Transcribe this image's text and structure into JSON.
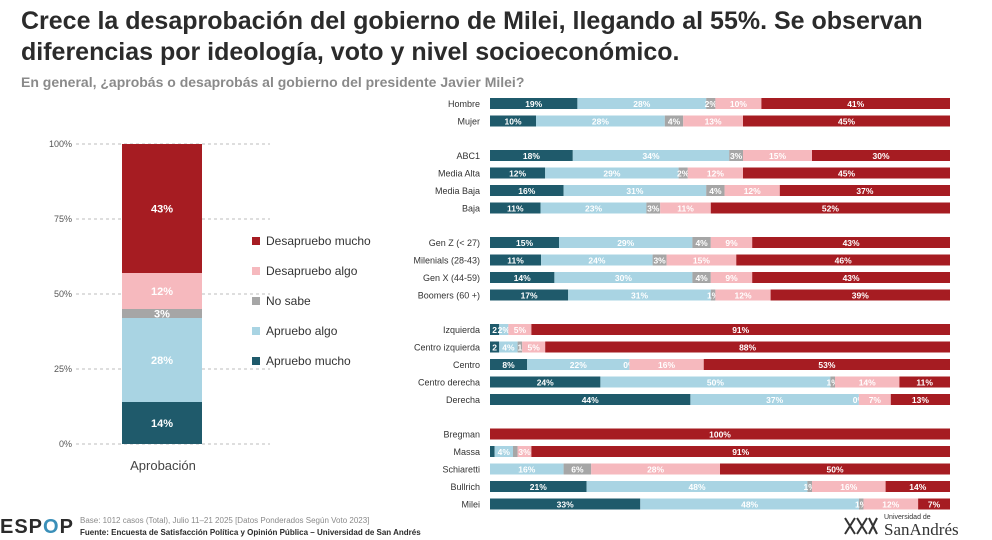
{
  "header": {
    "title": "Crece la desaprobación del gobierno de Milei, llegando al 55%. Se observan diferencias por ideología, voto y nivel socioeconómico.",
    "subtitle": "En general, ¿aprobás o desaprobás al gobierno del presidente Javier Milei?"
  },
  "colors": {
    "apruebo_mucho": "#1f5a6b",
    "apruebo_algo": "#a9d4e3",
    "no_sabe": "#a6a6a6",
    "desapruebo_algo": "#f6b9be",
    "desapruebo_mucho": "#a61c22"
  },
  "legend": [
    {
      "label": "Desapruebo mucho",
      "color": "#a61c22"
    },
    {
      "label": "Desapruebo algo",
      "color": "#f6b9be"
    },
    {
      "label": "No sabe",
      "color": "#a6a6a6"
    },
    {
      "label": "Apruebo algo",
      "color": "#a9d4e3"
    },
    {
      "label": "Apruebo mucho",
      "color": "#1f5a6b"
    }
  ],
  "chart_data": [
    {
      "type": "bar",
      "stacked": true,
      "category": "Aprobación",
      "ylim": [
        0,
        100
      ],
      "yticks": [
        "0%",
        "25%",
        "50%",
        "75%",
        "100%"
      ],
      "series": [
        {
          "name": "Apruebo mucho",
          "value": 14,
          "label": "14%"
        },
        {
          "name": "Apruebo algo",
          "value": 28,
          "label": "28%"
        },
        {
          "name": "No sabe",
          "value": 3,
          "label": "3%"
        },
        {
          "name": "Desapruebo algo",
          "value": 12,
          "label": "12%"
        },
        {
          "name": "Desapruebo mucho",
          "value": 43,
          "label": "43%"
        }
      ]
    },
    {
      "type": "bar",
      "stacked": true,
      "orientation": "horizontal",
      "series_order": [
        "Apruebo mucho",
        "Apruebo algo",
        "No sabe",
        "Desapruebo algo",
        "Desapruebo mucho"
      ],
      "groups": [
        {
          "rows": [
            {
              "label": "Hombre",
              "values": [
                19,
                28,
                2,
                10,
                41
              ]
            },
            {
              "label": "Mujer",
              "values": [
                10,
                28,
                4,
                13,
                45
              ]
            }
          ]
        },
        {
          "rows": [
            {
              "label": "ABC1",
              "values": [
                18,
                34,
                3,
                15,
                30
              ]
            },
            {
              "label": "Media Alta",
              "values": [
                12,
                29,
                2,
                12,
                45
              ]
            },
            {
              "label": "Media Baja",
              "values": [
                16,
                31,
                4,
                12,
                37
              ]
            },
            {
              "label": "Baja",
              "values": [
                11,
                23,
                3,
                11,
                52
              ]
            }
          ]
        },
        {
          "rows": [
            {
              "label": "Gen Z (< 27)",
              "values": [
                15,
                29,
                4,
                9,
                43
              ]
            },
            {
              "label": "Milenials (28-43)",
              "values": [
                11,
                24,
                3,
                15,
                46
              ]
            },
            {
              "label": "Gen X (44-59)",
              "values": [
                14,
                30,
                4,
                9,
                43
              ]
            },
            {
              "label": "Boomers (60 +)",
              "values": [
                17,
                31,
                1,
                12,
                39
              ]
            }
          ]
        },
        {
          "rows": [
            {
              "label": "Izquierda",
              "values": [
                2,
                2,
                0,
                5,
                91
              ],
              "labels": [
                "2",
                "2%",
                "",
                "5%",
                "91%"
              ]
            },
            {
              "label": "Centro izquierda",
              "values": [
                2,
                4,
                1,
                5,
                88
              ],
              "labels": [
                "2",
                "4%",
                "1",
                "5%",
                "88%"
              ]
            },
            {
              "label": "Centro",
              "values": [
                8,
                22,
                0,
                16,
                53
              ]
            },
            {
              "label": "Centro derecha",
              "values": [
                24,
                50,
                1,
                14,
                11
              ]
            },
            {
              "label": "Derecha",
              "values": [
                44,
                37,
                0,
                7,
                13
              ]
            }
          ]
        },
        {
          "rows": [
            {
              "label": "Bregman",
              "values": [
                0,
                0,
                0,
                0,
                100
              ],
              "labels": [
                "%",
                "",
                "",
                "",
                "100%"
              ]
            },
            {
              "label": "Massa",
              "values": [
                1,
                4,
                1,
                3,
                91
              ],
              "labels": [
                "",
                "4%",
                "",
                "3%",
                "91%"
              ]
            },
            {
              "label": "Schiaretti",
              "values": [
                0,
                16,
                6,
                28,
                50
              ],
              "labels": [
                "%",
                "16%",
                "6%",
                "28%",
                "50%"
              ]
            },
            {
              "label": "Bullrich",
              "values": [
                21,
                48,
                1,
                16,
                14
              ]
            },
            {
              "label": "Milei",
              "values": [
                33,
                48,
                1,
                12,
                7
              ]
            }
          ]
        }
      ]
    }
  ],
  "footer": {
    "logo_left": "ESP",
    "logo_o": "O",
    "logo_right": "P",
    "base": "Base: 1012 casos (Total), Julio 11–21 2025 [Datos Ponderados Según Voto 2023]",
    "source": "Fuente: Encuesta de Satisfacción Política y Opinión Pública – Universidad de San Andrés",
    "udesa_small": "Universidad de",
    "udesa_big": "SanAndrés"
  }
}
